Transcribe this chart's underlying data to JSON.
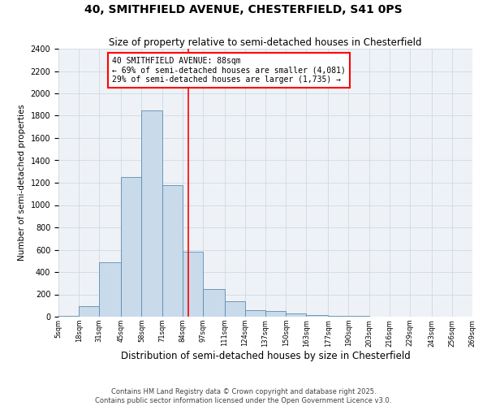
{
  "title": "40, SMITHFIELD AVENUE, CHESTERFIELD, S41 0PS",
  "subtitle": "Size of property relative to semi-detached houses in Chesterfield",
  "xlabel": "Distribution of semi-detached houses by size in Chesterfield",
  "ylabel": "Number of semi-detached properties",
  "footer_line1": "Contains HM Land Registry data © Crown copyright and database right 2025.",
  "footer_line2": "Contains public sector information licensed under the Open Government Licence v3.0.",
  "annotation_title": "40 SMITHFIELD AVENUE: 88sqm",
  "annotation_line1": "← 69% of semi-detached houses are smaller (4,081)",
  "annotation_line2": "29% of semi-detached houses are larger (1,735) →",
  "property_size": 88,
  "bar_color": "#c9daea",
  "bar_edge_color": "#5a8db0",
  "vline_color": "red",
  "grid_color": "#d0d8e0",
  "background_color": "#eef2f7",
  "bins": [
    5,
    18,
    31,
    45,
    58,
    71,
    84,
    97,
    111,
    124,
    137,
    150,
    163,
    177,
    190,
    203,
    216,
    229,
    243,
    256,
    269
  ],
  "counts": [
    8,
    95,
    490,
    1250,
    1850,
    1180,
    580,
    250,
    135,
    60,
    50,
    28,
    18,
    8,
    4,
    2,
    2,
    1,
    0,
    0
  ],
  "ylim": [
    0,
    2400
  ],
  "yticks": [
    0,
    200,
    400,
    600,
    800,
    1000,
    1200,
    1400,
    1600,
    1800,
    2000,
    2200,
    2400
  ],
  "tick_labels": [
    "5sqm",
    "18sqm",
    "31sqm",
    "45sqm",
    "58sqm",
    "71sqm",
    "84sqm",
    "97sqm",
    "111sqm",
    "124sqm",
    "137sqm",
    "150sqm",
    "163sqm",
    "177sqm",
    "190sqm",
    "203sqm",
    "216sqm",
    "229sqm",
    "243sqm",
    "256sqm",
    "269sqm"
  ],
  "title_fontsize": 10,
  "subtitle_fontsize": 8.5,
  "ylabel_fontsize": 7.5,
  "xlabel_fontsize": 8.5,
  "ytick_fontsize": 7,
  "xtick_fontsize": 6,
  "annotation_fontsize": 7,
  "footer_fontsize": 6
}
